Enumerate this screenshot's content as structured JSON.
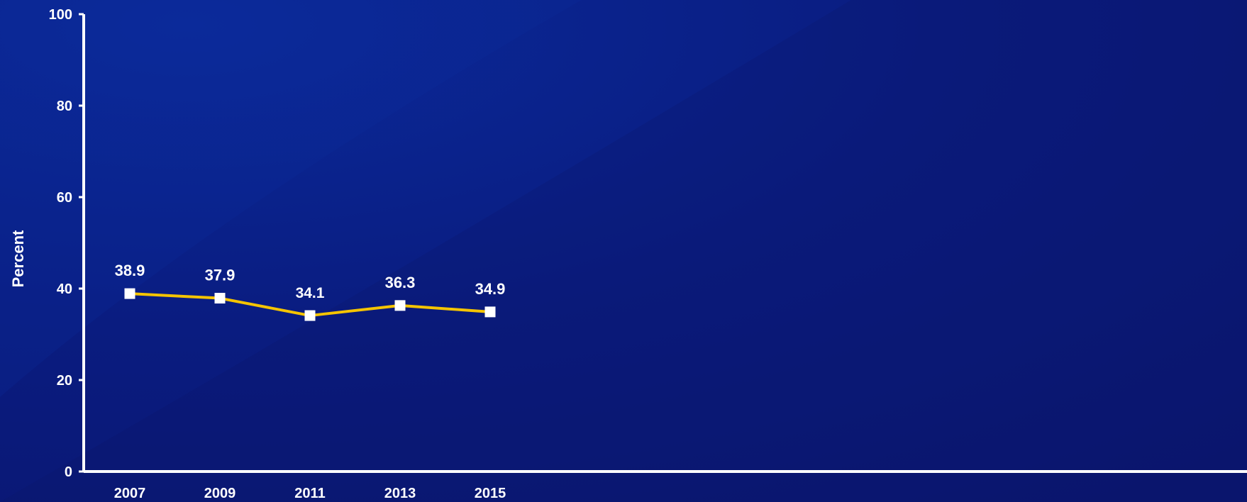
{
  "chart_data": {
    "type": "line",
    "title": "",
    "xlabel": "",
    "ylabel": "Percent",
    "categories": [
      "2007",
      "2009",
      "2011",
      "2013",
      "2015"
    ],
    "series": [
      {
        "values": [
          38.9,
          37.9,
          34.1,
          36.3,
          34.9
        ],
        "color": "#f5c400",
        "marker": "square",
        "marker_color": "#ffffff"
      }
    ],
    "data_labels": [
      "38.9",
      "37.9",
      "34.1",
      "36.3",
      "34.9"
    ],
    "y_ticks": [
      0,
      20,
      40,
      60,
      80,
      100
    ],
    "ylim": [
      0,
      100
    ],
    "grid": false,
    "legend": "none"
  },
  "colors": {
    "background": "#0a1a7a",
    "axis": "#ffffff",
    "text": "#ffffff"
  }
}
